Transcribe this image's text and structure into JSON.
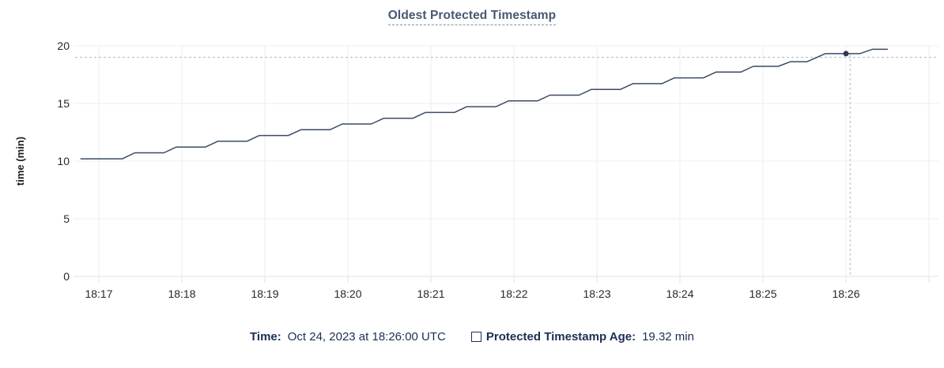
{
  "title": "Oldest Protected Timestamp",
  "colors": {
    "title": "#475872",
    "axis_text": "#24292e",
    "ylabel_text": "#1b1e23",
    "grid": "#ececec",
    "axis_line": "#e0e0e0",
    "line": "#3b4a63",
    "dot": "#2c3a52",
    "crosshair": "#a4b9c5",
    "legend_text": "#1c2f55"
  },
  "legend": {
    "time_label": "Time:",
    "time_value": "Oct 24, 2023 at 18:26:00 UTC",
    "series_label": "Protected Timestamp Age:",
    "series_value": "19.32 min"
  },
  "chart_data": {
    "type": "line",
    "title": "Oldest Protected Timestamp",
    "xlabel": "",
    "ylabel": "time (min)",
    "grid": true,
    "y_axis": {
      "range": [
        0,
        20
      ],
      "ticks": [
        0,
        5,
        10,
        15,
        20
      ]
    },
    "x_axis": {
      "unit": "time of day (UTC)",
      "ticks": [
        {
          "t": 0,
          "label": "18:17"
        },
        {
          "t": 60,
          "label": "18:18"
        },
        {
          "t": 120,
          "label": "18:19"
        },
        {
          "t": 180,
          "label": "18:20"
        },
        {
          "t": 240,
          "label": "18:21"
        },
        {
          "t": 300,
          "label": "18:22"
        },
        {
          "t": 360,
          "label": "18:23"
        },
        {
          "t": 420,
          "label": "18:24"
        },
        {
          "t": 480,
          "label": "18:25"
        },
        {
          "t": 540,
          "label": "18:26"
        },
        {
          "t": 600,
          "label": ""
        }
      ]
    },
    "series": [
      {
        "name": "Protected Timestamp Age",
        "unit": "min",
        "points": [
          [
            -13,
            10.2
          ],
          [
            17,
            10.2
          ],
          [
            26,
            10.72
          ],
          [
            47,
            10.72
          ],
          [
            56,
            11.22
          ],
          [
            77,
            11.22
          ],
          [
            86,
            11.72
          ],
          [
            107,
            11.72
          ],
          [
            116,
            12.22
          ],
          [
            137,
            12.22
          ],
          [
            146,
            12.72
          ],
          [
            167,
            12.72
          ],
          [
            176,
            13.22
          ],
          [
            197,
            13.22
          ],
          [
            206,
            13.72
          ],
          [
            227,
            13.72
          ],
          [
            236,
            14.22
          ],
          [
            257,
            14.22
          ],
          [
            266,
            14.72
          ],
          [
            287,
            14.72
          ],
          [
            296,
            15.22
          ],
          [
            317,
            15.22
          ],
          [
            326,
            15.72
          ],
          [
            347,
            15.72
          ],
          [
            356,
            16.22
          ],
          [
            377,
            16.22
          ],
          [
            386,
            16.72
          ],
          [
            407,
            16.72
          ],
          [
            416,
            17.22
          ],
          [
            437,
            17.22
          ],
          [
            446,
            17.72
          ],
          [
            464,
            17.72
          ],
          [
            473,
            18.22
          ],
          [
            491,
            18.22
          ],
          [
            500,
            18.62
          ],
          [
            512,
            18.62
          ],
          [
            525,
            19.32
          ],
          [
            550,
            19.32
          ],
          [
            559,
            19.7
          ],
          [
            570,
            19.7
          ]
        ]
      }
    ],
    "hover": {
      "time_label": "Oct 24, 2023 at 18:26:00 UTC",
      "value": 19.32,
      "value_label": "19.32 min",
      "dot": [
        540,
        19.32
      ],
      "crosshair_t": 543,
      "crosshair_value": 19.0
    }
  }
}
